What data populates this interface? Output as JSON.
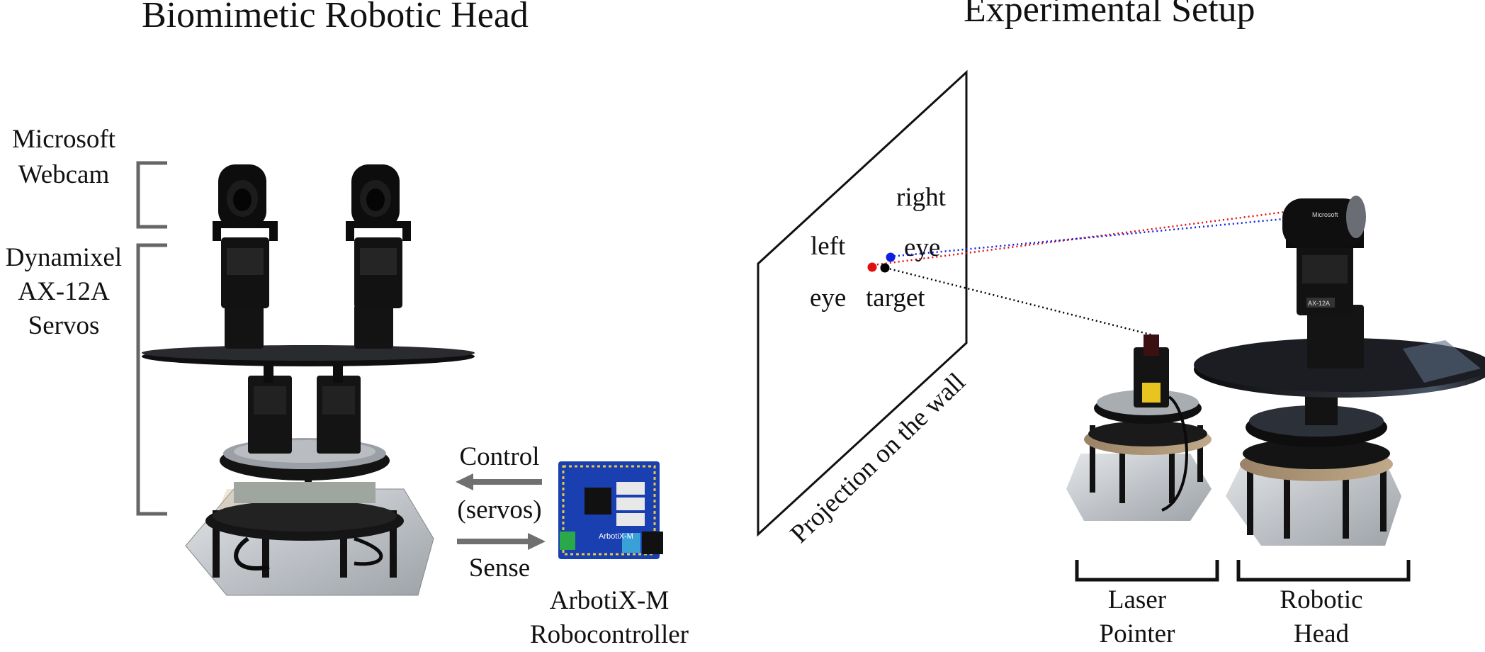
{
  "left_panel": {
    "title": "Biomimetic Robotic Head",
    "webcam_label": [
      "Microsoft",
      "Webcam"
    ],
    "servo_label": [
      "Dynamixel",
      "AX-12A",
      "Servos"
    ],
    "control_label": "Control",
    "servos_label": "(servos)",
    "sense_label": "Sense",
    "controller_label": [
      "ArbotiX-M",
      "Robocontroller"
    ],
    "board_print": "ArbotiX-M"
  },
  "right_panel": {
    "title": "Experimental Setup",
    "wall_label": "Projection on the wall",
    "right_eye_label": [
      "right",
      "eye"
    ],
    "left_eye_label": [
      "left",
      "eye"
    ],
    "target_label": "target",
    "laser_label": [
      "Laser",
      "Pointer"
    ],
    "head_label": [
      "Robotic",
      "Head"
    ],
    "camera_brand": "Microsoft",
    "servo_print": "AX-12A"
  },
  "colors": {
    "left_eye_dot": "#e01010",
    "right_eye_dot": "#1020e0",
    "target_dot": "#000000",
    "bracket": "#666666",
    "arrow": "#707070",
    "board": "#1a3fb0"
  }
}
